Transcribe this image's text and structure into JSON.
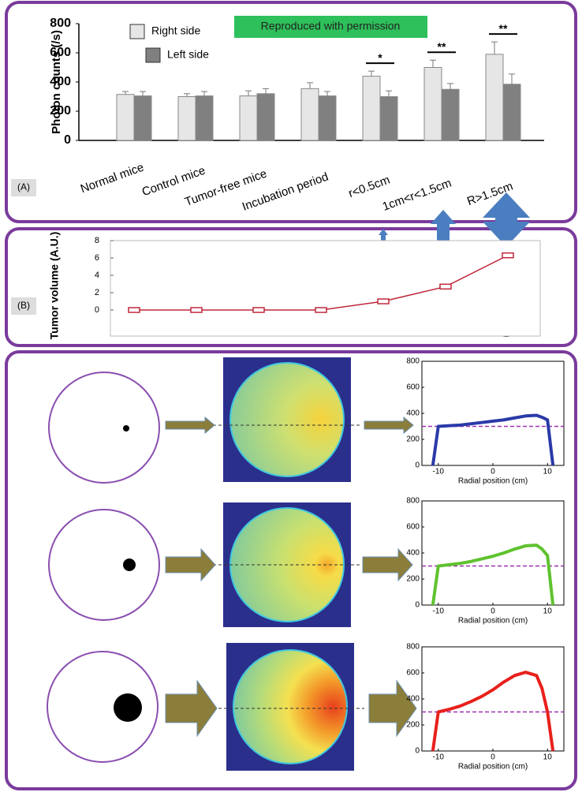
{
  "chart_data": [
    {
      "type": "bar",
      "panel_label": "(A)",
      "ylabel": "Photon counts (/s)",
      "banner": "Reproduced with permission",
      "categories": [
        "Normal mice",
        "Control mice",
        "Tumor-free mice",
        "Incubation period",
        "r<0.5cm",
        "1cm<r<1.5cm",
        "R>1.5cm"
      ],
      "series": [
        {
          "name": "Right side",
          "color": "#e6e6e6",
          "values": [
            315,
            300,
            305,
            355,
            440,
            500,
            590
          ],
          "errors": [
            20,
            20,
            35,
            40,
            35,
            50,
            85
          ]
        },
        {
          "name": "Left side",
          "color": "#808080",
          "values": [
            305,
            305,
            320,
            305,
            300,
            350,
            385
          ],
          "errors": [
            30,
            30,
            35,
            30,
            40,
            40,
            70
          ]
        }
      ],
      "significance": [
        null,
        null,
        null,
        null,
        "*",
        "**",
        "**"
      ],
      "ylim": [
        0,
        800
      ],
      "yticks": [
        0,
        200,
        400,
        600,
        800
      ]
    },
    {
      "type": "line",
      "panel_label": "(B)",
      "ylabel": "Tumor volume (A.U.)",
      "categories": [
        null,
        null,
        null,
        null,
        null,
        null,
        null
      ],
      "values": [
        0,
        0,
        0,
        0,
        1,
        2.7,
        6.3
      ],
      "color": "#c0283c",
      "ylim": [
        -3,
        8
      ],
      "yticks": [
        0,
        2,
        4,
        6,
        8
      ]
    },
    {
      "type": "profile",
      "xlabel": "Radial position (cm)",
      "color": "#2a3aa8",
      "reference_line": 300,
      "reference_color": "#9b30b0",
      "x": [
        -11,
        -10,
        -8,
        -6,
        -4,
        -2,
        0,
        2,
        4,
        6,
        8,
        9,
        10,
        11
      ],
      "values": [
        0,
        300,
        305,
        310,
        320,
        330,
        340,
        350,
        365,
        380,
        385,
        370,
        350,
        0
      ],
      "xlim": [
        -13,
        13
      ],
      "xticks": [
        -10,
        0,
        10
      ],
      "ylim": [
        0,
        800
      ],
      "yticks": [
        0,
        200,
        400,
        600,
        800
      ]
    },
    {
      "type": "profile",
      "xlabel": "Radial position (cm)",
      "color": "#5fc22e",
      "reference_line": 300,
      "reference_color": "#9b30b0",
      "x": [
        -11,
        -10,
        -8,
        -6,
        -4,
        -2,
        0,
        2,
        4,
        6,
        8,
        9,
        10,
        11
      ],
      "values": [
        0,
        300,
        310,
        320,
        335,
        355,
        375,
        400,
        430,
        455,
        460,
        430,
        380,
        0
      ],
      "xlim": [
        -13,
        13
      ],
      "xticks": [
        -10,
        0,
        10
      ],
      "ylim": [
        0,
        800
      ],
      "yticks": [
        0,
        200,
        400,
        600,
        800
      ]
    },
    {
      "type": "profile",
      "xlabel": "Radial position (cm)",
      "color": "#e8201c",
      "reference_line": 300,
      "reference_color": "#9b30b0",
      "x": [
        -11,
        -10,
        -8,
        -6,
        -4,
        -2,
        0,
        2,
        4,
        6,
        8,
        9,
        10,
        11
      ],
      "values": [
        0,
        300,
        320,
        345,
        380,
        420,
        470,
        530,
        580,
        605,
        580,
        480,
        300,
        0
      ],
      "xlim": [
        -13,
        13
      ],
      "xticks": [
        -10,
        0,
        10
      ],
      "ylim": [
        0,
        800
      ],
      "yticks": [
        0,
        200,
        400,
        600,
        800
      ]
    }
  ]
}
